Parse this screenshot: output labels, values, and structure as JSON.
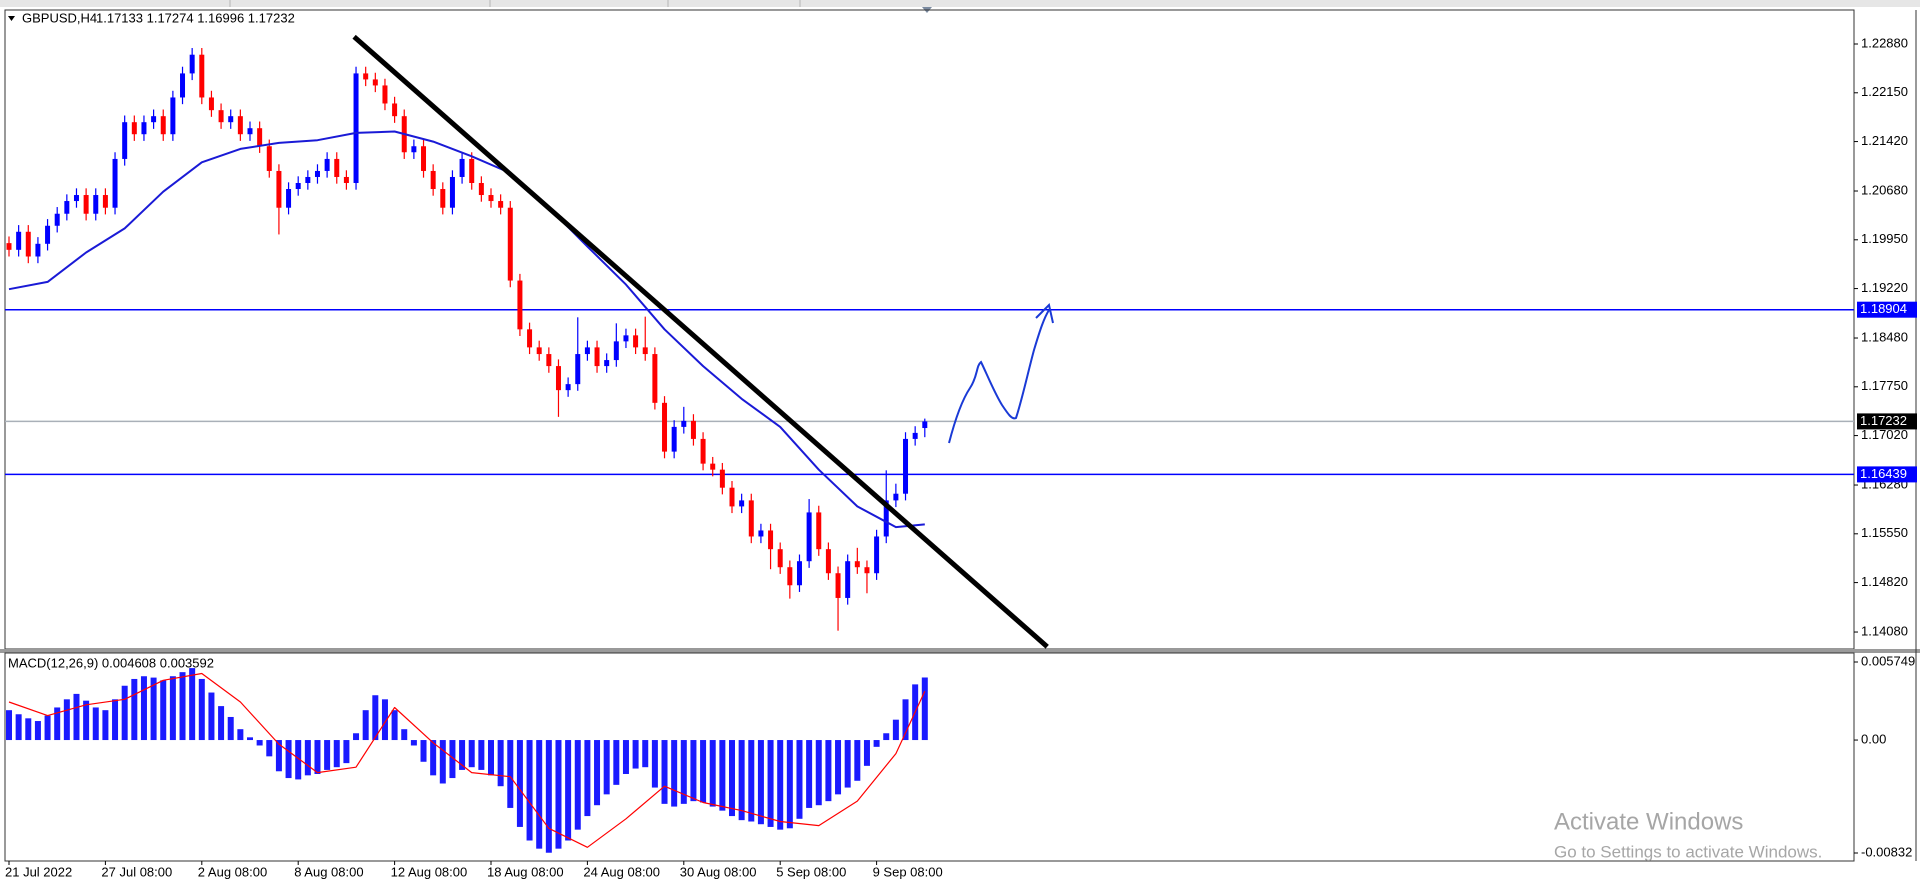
{
  "chart_data": [
    {
      "type": "candlestick",
      "title": "GBPUSD,H4",
      "quote": "1.17133 1.17274 1.16996 1.17232",
      "categories": [
        "21 Jul 2022",
        null,
        null,
        null,
        null,
        null,
        null,
        null,
        null,
        null,
        "27 Jul 08:00",
        null,
        null,
        null,
        null,
        null,
        null,
        null,
        null,
        null,
        "2 Aug 08:00",
        null,
        null,
        null,
        null,
        null,
        null,
        null,
        null,
        null,
        "8 Aug 08:00",
        null,
        null,
        null,
        null,
        null,
        null,
        null,
        null,
        null,
        "12 Aug 08:00",
        null,
        null,
        null,
        null,
        null,
        null,
        null,
        null,
        null,
        "18 Aug 08:00",
        null,
        null,
        null,
        null,
        null,
        null,
        null,
        null,
        null,
        "24 Aug 08:00",
        null,
        null,
        null,
        null,
        null,
        null,
        null,
        null,
        null,
        "30 Aug 08:00",
        null,
        null,
        null,
        null,
        null,
        null,
        null,
        null,
        null,
        "5 Sep 08:00",
        null,
        null,
        null,
        null,
        null,
        null,
        null,
        null,
        null,
        "9 Sep 08:00",
        null,
        null,
        null,
        null,
        null
      ],
      "open": [
        1.199,
        1.198,
        1.2007,
        1.197,
        1.1989,
        1.2016,
        1.2034,
        1.2053,
        1.2062,
        1.2034,
        1.2062,
        1.2043,
        1.2116,
        1.2171,
        1.2153,
        1.2171,
        1.218,
        1.2153,
        1.2208,
        1.2244,
        1.2272,
        1.2208,
        1.2189,
        1.2171,
        1.218,
        1.2153,
        1.2162,
        1.2135,
        1.2098,
        1.2043,
        1.2071,
        1.208,
        1.2089,
        1.2098,
        1.2116,
        1.2089,
        1.208,
        1.2244,
        1.2235,
        1.2226,
        1.2199,
        1.218,
        1.2126,
        1.2135,
        1.2098,
        1.2071,
        1.2043,
        1.2089,
        1.2116,
        1.208,
        1.2062,
        1.2053,
        1.2043,
        1.1934,
        1.1861,
        1.1834,
        1.1824,
        1.1806,
        1.177,
        1.1779,
        1.1824,
        1.1834,
        1.1806,
        1.1815,
        1.1843,
        1.1852,
        1.1834,
        1.1824,
        1.1751,
        1.1678,
        1.1715,
        1.1724,
        1.1697,
        1.166,
        1.1651,
        1.1624,
        1.1596,
        1.1605,
        1.1551,
        1.156,
        1.1532,
        1.1505,
        1.1478,
        1.1514,
        1.1587,
        1.1532,
        1.1496,
        1.1459,
        1.1514,
        1.1505,
        1.1496,
        1.1551,
        1.1605,
        1.1615,
        1.1697,
        1.17133
      ],
      "high": [
        1.2,
        1.2017,
        1.2017,
        1.1999,
        1.2026,
        1.2044,
        1.2063,
        1.2072,
        1.2072,
        1.2072,
        1.2072,
        1.2126,
        1.2181,
        1.2181,
        1.2181,
        1.219,
        1.219,
        1.2218,
        1.2254,
        1.2282,
        1.2282,
        1.2218,
        1.2199,
        1.219,
        1.219,
        1.2172,
        1.2172,
        1.2145,
        1.2108,
        1.2081,
        1.209,
        1.2099,
        1.2108,
        1.2126,
        1.2126,
        1.2099,
        1.2254,
        1.2254,
        1.2245,
        1.2236,
        1.2209,
        1.219,
        1.2145,
        1.2145,
        1.2108,
        1.2081,
        1.2099,
        1.2126,
        1.2126,
        1.209,
        1.2072,
        1.2063,
        1.2053,
        1.1944,
        1.1871,
        1.1844,
        1.1834,
        1.1816,
        1.1789,
        1.1879,
        1.1844,
        1.1844,
        1.1825,
        1.187,
        1.1862,
        1.1862,
        1.188,
        1.1834,
        1.1761,
        1.1725,
        1.1745,
        1.1734,
        1.1707,
        1.167,
        1.1661,
        1.1634,
        1.1615,
        1.1615,
        1.157,
        1.157,
        1.1542,
        1.1515,
        1.1524,
        1.1607,
        1.1597,
        1.1542,
        1.1506,
        1.1524,
        1.1534,
        1.1515,
        1.1561,
        1.165,
        1.163,
        1.1707,
        1.1716,
        1.17274
      ],
      "low": [
        1.197,
        1.197,
        1.196,
        1.196,
        1.1979,
        1.2006,
        1.2024,
        1.2043,
        1.2024,
        1.2024,
        1.2033,
        1.2033,
        1.2106,
        1.2143,
        1.2143,
        1.2161,
        1.2143,
        1.2143,
        1.2198,
        1.2234,
        1.2198,
        1.2179,
        1.2161,
        1.2161,
        1.2143,
        1.2143,
        1.2125,
        1.2088,
        1.2003,
        1.2033,
        1.2061,
        1.207,
        1.2079,
        1.2088,
        1.2079,
        1.207,
        1.207,
        1.2225,
        1.2216,
        1.2189,
        1.217,
        1.2116,
        1.2116,
        1.2088,
        1.2061,
        1.2033,
        1.2033,
        1.2079,
        1.207,
        1.2052,
        1.2043,
        1.2033,
        1.1924,
        1.1851,
        1.1824,
        1.1814,
        1.1796,
        1.173,
        1.176,
        1.1769,
        1.1814,
        1.1796,
        1.1796,
        1.1805,
        1.1833,
        1.1824,
        1.1814,
        1.1741,
        1.1668,
        1.1668,
        1.1705,
        1.1687,
        1.165,
        1.1641,
        1.1614,
        1.1586,
        1.1586,
        1.1541,
        1.1541,
        1.1502,
        1.1495,
        1.1458,
        1.1468,
        1.1504,
        1.1522,
        1.1486,
        1.141,
        1.1449,
        1.1495,
        1.1466,
        1.1486,
        1.1541,
        1.1595,
        1.1605,
        1.1687,
        1.16996
      ],
      "close": [
        1.198,
        1.2007,
        1.197,
        1.1989,
        1.2016,
        1.2034,
        1.2053,
        1.2062,
        1.2034,
        1.2062,
        1.2043,
        1.2116,
        1.2171,
        1.2153,
        1.2171,
        1.218,
        1.2153,
        1.2208,
        1.2244,
        1.2272,
        1.2208,
        1.2189,
        1.2171,
        1.218,
        1.2153,
        1.2162,
        1.2135,
        1.2098,
        1.2043,
        1.2071,
        1.208,
        1.2089,
        1.2098,
        1.2116,
        1.2089,
        1.208,
        1.2244,
        1.2235,
        1.2226,
        1.2199,
        1.218,
        1.2126,
        1.2135,
        1.2098,
        1.2071,
        1.2043,
        1.2089,
        1.2116,
        1.208,
        1.2062,
        1.2053,
        1.2043,
        1.1934,
        1.1861,
        1.1834,
        1.1824,
        1.1806,
        1.177,
        1.1779,
        1.1824,
        1.1834,
        1.1806,
        1.1815,
        1.1843,
        1.1852,
        1.1834,
        1.1824,
        1.1751,
        1.1678,
        1.1715,
        1.1724,
        1.1697,
        1.166,
        1.1651,
        1.1624,
        1.1596,
        1.1605,
        1.1551,
        1.156,
        1.1532,
        1.1505,
        1.1478,
        1.1514,
        1.1587,
        1.1532,
        1.1496,
        1.1459,
        1.1514,
        1.1505,
        1.1496,
        1.1551,
        1.1605,
        1.1615,
        1.1697,
        1.1706,
        1.17232
      ],
      "up_color": "#0000ff",
      "down_color": "#ff0000",
      "ylim": [
        1.13826,
        1.23389
      ],
      "yticks": [
        {
          "value": 1.2288,
          "label": "1.22880"
        },
        {
          "value": 1.2215,
          "label": "1.22150"
        },
        {
          "value": 1.2142,
          "label": "1.21420"
        },
        {
          "value": 1.2068,
          "label": "1.20680"
        },
        {
          "value": 1.1995,
          "label": "1.19950"
        },
        {
          "value": 1.1922,
          "label": "1.19220"
        },
        {
          "value": 1.1848,
          "label": "1.18480"
        },
        {
          "value": 1.1775,
          "label": "1.17750"
        },
        {
          "value": 1.1702,
          "label": "1.17020"
        },
        {
          "value": 1.1628,
          "label": "1.16280"
        },
        {
          "value": 1.1555,
          "label": "1.15550"
        },
        {
          "value": 1.1482,
          "label": "1.14820"
        },
        {
          "value": 1.1408,
          "label": "1.14080"
        }
      ],
      "overlays": [
        {
          "color": "#1a1ad6",
          "width": 2,
          "x": [
            0,
            4,
            8,
            12,
            16,
            20,
            24,
            28,
            32,
            36,
            40,
            44,
            48,
            52,
            56,
            60,
            64,
            68,
            72,
            76,
            80,
            84,
            88,
            92,
            95
          ],
          "values": [
            1.1921,
            1.1932,
            1.1976,
            1.2012,
            1.2067,
            1.2111,
            1.2131,
            1.214,
            1.2144,
            1.2155,
            1.2157,
            1.2142,
            1.212,
            1.2095,
            1.2043,
            1.1985,
            1.1928,
            1.1861,
            1.1806,
            1.1757,
            1.1715,
            1.1651,
            1.1596,
            1.1565,
            1.1569
          ]
        },
        {
          "color": "#000000",
          "width": 5,
          "x": [
            35.8,
            107.7
          ],
          "values": [
            1.2299,
            1.1386
          ]
        }
      ],
      "levels": [
        {
          "value": 1.18904,
          "color": "#0000ff",
          "label_fill": "#0000ff"
        },
        {
          "value": 1.17232,
          "color": "#a9b0b8",
          "label_fill": "#000000"
        },
        {
          "value": 1.16439,
          "color": "#0000ff",
          "label_fill": "#0000ff"
        }
      ]
    },
    {
      "type": "macd",
      "title": "MACD(12,26,9) 0.004608 0.003592",
      "series": [
        {
          "type": "bar",
          "color": "#1a1aff",
          "values": [
            0.0022,
            0.0019,
            0.0016,
            0.0014,
            0.0018,
            0.0024,
            0.003,
            0.0034,
            0.0029,
            0.0024,
            0.0022,
            0.003,
            0.004,
            0.0045,
            0.0047,
            0.0046,
            0.0044,
            0.0047,
            0.005,
            0.0053,
            0.0045,
            0.0035,
            0.0025,
            0.0017,
            0.0008,
            0.0002,
            -0.0004,
            -0.0012,
            -0.0023,
            -0.0028,
            -0.0029,
            -0.0026,
            -0.0025,
            -0.0022,
            -0.002,
            -0.0017,
            0.0005,
            0.0022,
            0.0033,
            0.003,
            0.0022,
            0.0008,
            -0.0004,
            -0.0016,
            -0.0026,
            -0.0032,
            -0.0028,
            -0.0022,
            -0.002,
            -0.0022,
            -0.0026,
            -0.0034,
            -0.005,
            -0.0064,
            -0.0074,
            -0.008,
            -0.0083,
            -0.008,
            -0.0074,
            -0.0066,
            -0.0056,
            -0.0048,
            -0.004,
            -0.0033,
            -0.0025,
            -0.0021,
            -0.002,
            -0.0035,
            -0.0047,
            -0.0049,
            -0.0047,
            -0.0045,
            -0.0046,
            -0.0049,
            -0.0052,
            -0.0056,
            -0.0059,
            -0.006,
            -0.0062,
            -0.0064,
            -0.0066,
            -0.0065,
            -0.0058,
            -0.005,
            -0.0048,
            -0.0045,
            -0.004,
            -0.0035,
            -0.003,
            -0.0019,
            -0.0005,
            0.0005,
            0.0015,
            0.003,
            0.0041,
            0.004608
          ]
        },
        {
          "type": "line",
          "color": "#ff0000",
          "x": [
            0,
            4,
            8,
            12,
            16,
            20,
            24,
            28,
            32,
            36,
            40,
            44,
            48,
            52,
            56,
            60,
            64,
            68,
            72,
            76,
            80,
            84,
            88,
            92,
            95
          ],
          "values": [
            0.0028,
            0.0018,
            0.0026,
            0.003,
            0.0044,
            0.0049,
            0.0028,
            -0.0003,
            -0.0024,
            -0.002,
            0.0024,
            -0.0002,
            -0.0024,
            -0.0027,
            -0.0065,
            -0.0079,
            -0.0058,
            -0.0034,
            -0.0046,
            -0.0052,
            -0.006,
            -0.0063,
            -0.0045,
            -0.001,
            0.003592
          ]
        }
      ],
      "ylim": [
        -0.00832,
        0.005749
      ],
      "yticks": [
        0.005749,
        {
          "value": 0,
          "label": "0.00"
        },
        -0.00832
      ]
    }
  ],
  "watermark": {
    "title": "Activate Windows",
    "subtitle": "Go to Settings to activate Windows."
  }
}
